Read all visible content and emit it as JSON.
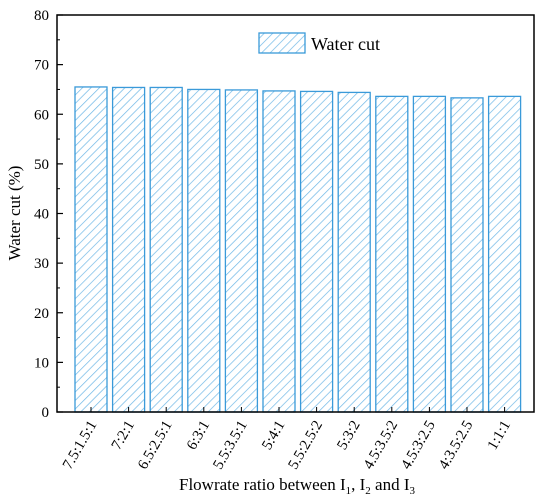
{
  "chart_data": {
    "type": "bar",
    "categories": [
      "7.5:1.5:1",
      "7:2:1",
      "6.5:2.5:1",
      "6:3:1",
      "5.5:3.5:1",
      "5:4:1",
      "5.5:2.5:2",
      "5:3:2",
      "4.5:3.5:2",
      "4.5:3:2.5",
      "4:3.5:2.5",
      "1:1:1"
    ],
    "series": [
      {
        "name": "Water cut",
        "values": [
          65.5,
          65.4,
          65.4,
          65.0,
          64.9,
          64.7,
          64.6,
          64.4,
          63.6,
          63.6,
          63.3,
          63.6
        ]
      }
    ],
    "xlabel": {
      "prefix": "Flowrate ratio between I",
      "sub1": "1",
      "mid1": ", I",
      "sub2": "2",
      "mid2": " and I",
      "sub3": "3"
    },
    "ylabel": "Water cut (%)",
    "ylim": [
      0,
      80
    ],
    "yticks": [
      "0",
      "10",
      "20",
      "30",
      "40",
      "50",
      "60",
      "70",
      "80"
    ],
    "legend_position": "top-right",
    "colors": {
      "bar_stroke": "#3a9ad9",
      "hatch": "#6fb8e6",
      "axis": "#000000"
    }
  }
}
